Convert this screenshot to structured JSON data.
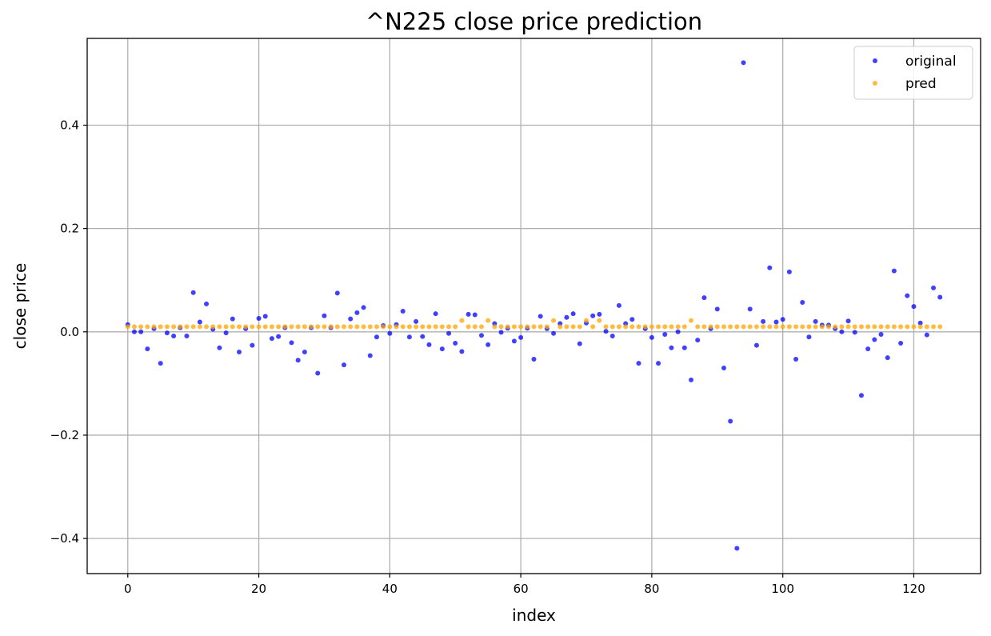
{
  "chart_data": {
    "type": "scatter",
    "title": "^N225 close price prediction",
    "xlabel": "index",
    "ylabel": "close price",
    "xlim": [
      -6.2,
      130.2
    ],
    "ylim": [
      -0.468,
      0.568
    ],
    "xticks": [
      0,
      20,
      40,
      60,
      80,
      100,
      120
    ],
    "xtick_labels": [
      "0",
      "20",
      "40",
      "60",
      "80",
      "100",
      "120"
    ],
    "yticks": [
      -0.4,
      -0.2,
      0.0,
      0.2,
      0.4
    ],
    "ytick_labels": [
      "−0.4",
      "−0.2",
      "0.0",
      "0.2",
      "0.4"
    ],
    "grid": true,
    "legend_position": "top-right",
    "series": [
      {
        "name": "original",
        "color": "#0000ff",
        "x": [
          0,
          1,
          2,
          3,
          4,
          5,
          6,
          7,
          8,
          9,
          10,
          11,
          12,
          13,
          14,
          15,
          16,
          17,
          18,
          19,
          20,
          21,
          22,
          23,
          24,
          25,
          26,
          27,
          28,
          29,
          30,
          31,
          32,
          33,
          34,
          35,
          36,
          37,
          38,
          39,
          40,
          41,
          42,
          43,
          44,
          45,
          46,
          47,
          48,
          49,
          50,
          51,
          52,
          53,
          54,
          55,
          56,
          57,
          58,
          59,
          60,
          61,
          62,
          63,
          64,
          65,
          66,
          67,
          68,
          69,
          70,
          71,
          72,
          73,
          74,
          75,
          76,
          77,
          78,
          79,
          80,
          81,
          82,
          83,
          84,
          85,
          86,
          87,
          88,
          89,
          90,
          91,
          92,
          93,
          94,
          95,
          96,
          97,
          98,
          99,
          100,
          101,
          102,
          103,
          104,
          105,
          106,
          107,
          108,
          109,
          110,
          111,
          112,
          113,
          114,
          115,
          116,
          117,
          118,
          119,
          120,
          121,
          122,
          123,
          124
        ],
        "y": [
          0.014,
          0.0,
          0.0,
          -0.033,
          0.006,
          -0.061,
          -0.002,
          -0.008,
          0.008,
          -0.008,
          0.076,
          0.019,
          0.054,
          0.005,
          -0.031,
          -0.002,
          0.025,
          -0.039,
          0.006,
          -0.026,
          0.026,
          0.03,
          -0.013,
          -0.009,
          0.008,
          -0.021,
          -0.055,
          -0.039,
          0.008,
          -0.08,
          0.031,
          0.008,
          0.075,
          -0.064,
          0.025,
          0.037,
          0.047,
          -0.046,
          -0.01,
          0.012,
          -0.003,
          0.014,
          0.04,
          -0.01,
          0.02,
          -0.009,
          -0.025,
          0.035,
          -0.033,
          -0.003,
          -0.022,
          -0.038,
          0.034,
          0.033,
          -0.007,
          -0.025,
          0.016,
          -0.001,
          0.007,
          -0.018,
          -0.011,
          0.007,
          -0.053,
          0.03,
          0.006,
          -0.003,
          0.016,
          0.028,
          0.035,
          -0.023,
          0.017,
          0.031,
          0.034,
          0.001,
          -0.008,
          0.051,
          0.016,
          0.024,
          -0.061,
          0.006,
          -0.011,
          -0.061,
          -0.005,
          -0.031,
          0.0,
          -0.031,
          -0.093,
          -0.016,
          0.066,
          0.006,
          0.044,
          -0.07,
          -0.173,
          -0.419,
          0.521,
          0.044,
          -0.026,
          0.02,
          0.124,
          0.019,
          0.024,
          0.116,
          -0.053,
          0.057,
          -0.01,
          0.02,
          0.013,
          0.013,
          0.006,
          0.0,
          0.021,
          -0.001,
          -0.123,
          -0.033,
          -0.015,
          -0.005,
          -0.05,
          0.118,
          -0.022,
          0.07,
          0.049,
          0.017,
          -0.006,
          0.085,
          0.067
        ]
      },
      {
        "name": "pred",
        "color": "#ffa500",
        "x": [
          0,
          1,
          2,
          3,
          4,
          5,
          6,
          7,
          8,
          9,
          10,
          11,
          12,
          13,
          14,
          15,
          16,
          17,
          18,
          19,
          20,
          21,
          22,
          23,
          24,
          25,
          26,
          27,
          28,
          29,
          30,
          31,
          32,
          33,
          34,
          35,
          36,
          37,
          38,
          39,
          40,
          41,
          42,
          43,
          44,
          45,
          46,
          47,
          48,
          49,
          50,
          51,
          52,
          53,
          54,
          55,
          56,
          57,
          58,
          59,
          60,
          61,
          62,
          63,
          64,
          65,
          66,
          67,
          68,
          69,
          70,
          71,
          72,
          73,
          74,
          75,
          76,
          77,
          78,
          79,
          80,
          81,
          82,
          83,
          84,
          85,
          86,
          87,
          88,
          89,
          90,
          91,
          92,
          93,
          94,
          95,
          96,
          97,
          98,
          99,
          100,
          101,
          102,
          103,
          104,
          105,
          106,
          107,
          108,
          109,
          110,
          111,
          112,
          113,
          114,
          115,
          116,
          117,
          118,
          119,
          120,
          121,
          122,
          123,
          124
        ],
        "y": [
          0.01,
          0.01,
          0.01,
          0.01,
          0.01,
          0.01,
          0.01,
          0.01,
          0.01,
          0.01,
          0.01,
          0.01,
          0.01,
          0.01,
          0.01,
          0.01,
          0.01,
          0.01,
          0.01,
          0.01,
          0.01,
          0.01,
          0.01,
          0.01,
          0.01,
          0.01,
          0.01,
          0.01,
          0.01,
          0.01,
          0.01,
          0.01,
          0.01,
          0.01,
          0.01,
          0.01,
          0.01,
          0.01,
          0.01,
          0.01,
          0.01,
          0.01,
          0.01,
          0.01,
          0.01,
          0.01,
          0.01,
          0.01,
          0.01,
          0.01,
          0.01,
          0.022,
          0.01,
          0.01,
          0.01,
          0.022,
          0.01,
          0.01,
          0.01,
          0.01,
          0.01,
          0.01,
          0.01,
          0.01,
          0.01,
          0.022,
          0.01,
          0.01,
          0.01,
          0.01,
          0.022,
          0.01,
          0.022,
          0.01,
          0.01,
          0.01,
          0.01,
          0.01,
          0.01,
          0.01,
          0.01,
          0.01,
          0.01,
          0.01,
          0.01,
          0.01,
          0.022,
          0.01,
          0.01,
          0.01,
          0.01,
          0.01,
          0.01,
          0.01,
          0.01,
          0.01,
          0.01,
          0.01,
          0.01,
          0.01,
          0.01,
          0.01,
          0.01,
          0.01,
          0.01,
          0.01,
          0.01,
          0.01,
          0.01,
          0.01,
          0.01,
          0.01,
          0.01,
          0.01,
          0.01,
          0.01,
          0.01,
          0.01,
          0.01,
          0.01,
          0.01,
          0.01,
          0.01,
          0.01,
          0.01
        ]
      }
    ]
  }
}
